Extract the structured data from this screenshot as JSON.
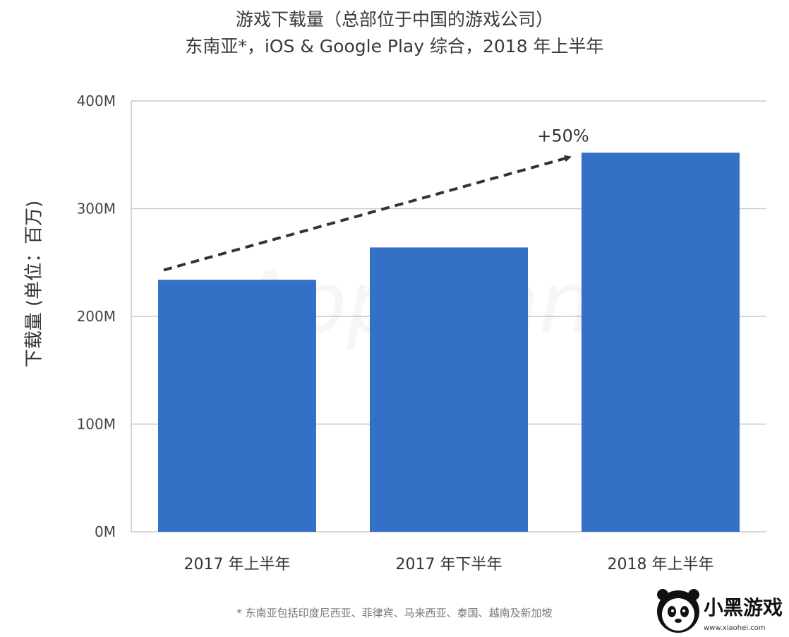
{
  "chart_data": {
    "type": "bar",
    "title": "游戏下载量（总部位于中国的游戏公司）",
    "subtitle": "东南亚*，iOS & Google Play 综合，2018 年上半年",
    "ylabel": "下载量 (单位：百万)",
    "categories": [
      "2017 年上半年",
      "2017 年下半年",
      "2018 年上半年"
    ],
    "values": [
      234,
      264,
      352
    ],
    "ylim": [
      0,
      400
    ],
    "yticks": [
      0,
      100,
      200,
      300,
      400
    ],
    "ytick_labels": [
      "0M",
      "100M",
      "200M",
      "300M",
      "400M"
    ],
    "grid": true,
    "bar_color": "#3370c6",
    "annotation": {
      "text": "+50%",
      "from_value": 243,
      "to_value": 348
    }
  },
  "footnote": "* 东南亚包括印度尼西亚、菲律宾、马来西亚、泰国、越南及新加坡",
  "watermark": "App Annie",
  "logo": {
    "text": "小黑游戏",
    "url_text": "www.xiaohei.com"
  }
}
